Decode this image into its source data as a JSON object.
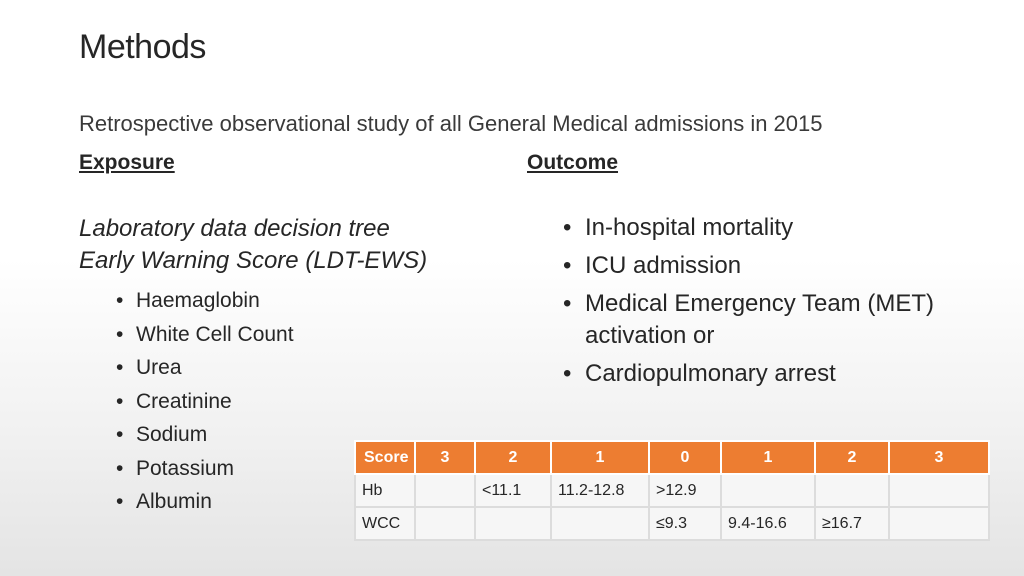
{
  "title": "Methods",
  "subtitle": "Retrospective observational study of all General Medical admissions in 2015",
  "exposure": {
    "heading": "Exposure",
    "title_line1": "Laboratory data decision tree",
    "title_line2": "Early Warning Score (LDT-EWS)",
    "items": [
      "Haemaglobin",
      "White Cell Count",
      "Urea",
      "Creatinine",
      "Sodium",
      "Potassium",
      "Albumin"
    ]
  },
  "outcome": {
    "heading": "Outcome",
    "items": [
      "In-hospital mortality",
      "ICU admission",
      "Medical Emergency Team (MET) activation or",
      "Cardiopulmonary arrest"
    ]
  },
  "table": {
    "headers": [
      "Score",
      "3",
      "2",
      "1",
      "0",
      "1",
      "2",
      "3"
    ],
    "rows": [
      [
        "Hb",
        "",
        "<11.1",
        "11.2-12.8",
        ">12.9",
        "",
        "",
        ""
      ],
      [
        "WCC",
        "",
        "",
        "",
        "≤9.3",
        "9.4-16.6",
        "≥16.7",
        ""
      ]
    ]
  },
  "colors": {
    "header_bg": "#ed7d31",
    "header_text": "#ffffff"
  }
}
